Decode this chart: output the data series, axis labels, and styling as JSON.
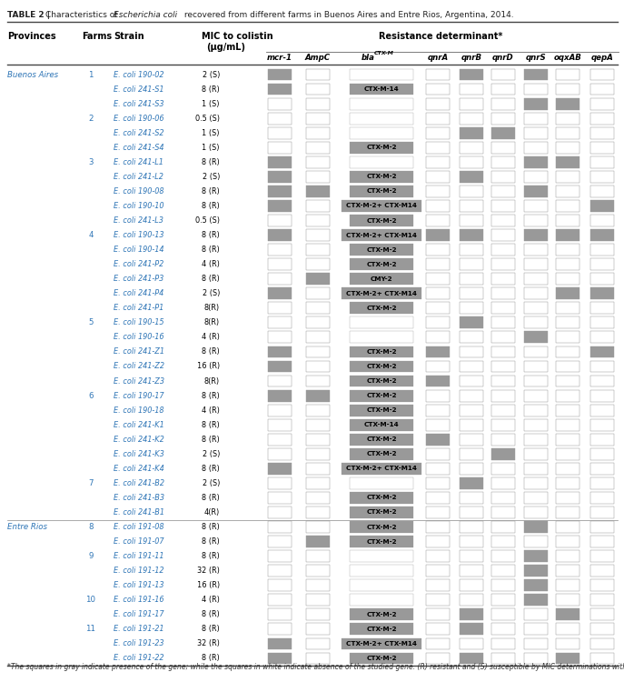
{
  "title_bold": "TABLE 2 | ",
  "title_rest": "Characteristics of ",
  "title_italic": "Escherichia coli",
  "title_end": " recovered from different farms in Buenos Aires and Entre Rios, Argentina, 2014.",
  "footnote": "*The squares in gray indicate presence of the gene; while the squares in white indicate absence of the studied gene. (R) resistant and (S) susceptible by MIC determinations with colistin.",
  "rows": [
    {
      "province": "Buenos Aires",
      "farm": "1",
      "strain": "E. coli 190-02",
      "mic": "2 (S)",
      "mcr1": 1,
      "ampc": 0,
      "ctxm": "",
      "qnra": 0,
      "qnrb": 1,
      "qnrd": 0,
      "qnrs": 1,
      "oqxab": 0,
      "qepa": 0
    },
    {
      "province": "",
      "farm": "",
      "strain": "E. coli 241-S1",
      "mic": "8 (R)",
      "mcr1": 1,
      "ampc": 0,
      "ctxm": "CTX-M-14",
      "qnra": 0,
      "qnrb": 0,
      "qnrd": 0,
      "qnrs": 0,
      "oqxab": 0,
      "qepa": 0
    },
    {
      "province": "",
      "farm": "",
      "strain": "E. coli 241-S3",
      "mic": "1 (S)",
      "mcr1": 0,
      "ampc": 0,
      "ctxm": "",
      "qnra": 0,
      "qnrb": 0,
      "qnrd": 0,
      "qnrs": 1,
      "oqxab": 1,
      "qepa": 0
    },
    {
      "province": "",
      "farm": "2",
      "strain": "E. coli 190-06",
      "mic": "0.5 (S)",
      "mcr1": 0,
      "ampc": 0,
      "ctxm": "",
      "qnra": 0,
      "qnrb": 0,
      "qnrd": 0,
      "qnrs": 0,
      "oqxab": 0,
      "qepa": 0
    },
    {
      "province": "",
      "farm": "",
      "strain": "E. coli 241-S2",
      "mic": "1 (S)",
      "mcr1": 0,
      "ampc": 0,
      "ctxm": "",
      "qnra": 0,
      "qnrb": 1,
      "qnrd": 1,
      "qnrs": 0,
      "oqxab": 0,
      "qepa": 0
    },
    {
      "province": "",
      "farm": "",
      "strain": "E. coli 241-S4",
      "mic": "1 (S)",
      "mcr1": 0,
      "ampc": 0,
      "ctxm": "CTX-M-2",
      "qnra": 0,
      "qnrb": 0,
      "qnrd": 0,
      "qnrs": 0,
      "oqxab": 0,
      "qepa": 0
    },
    {
      "province": "",
      "farm": "3",
      "strain": "E. coli 241-L1",
      "mic": "8 (R)",
      "mcr1": 1,
      "ampc": 0,
      "ctxm": "",
      "qnra": 0,
      "qnrb": 0,
      "qnrd": 0,
      "qnrs": 1,
      "oqxab": 1,
      "qepa": 0
    },
    {
      "province": "",
      "farm": "",
      "strain": "E. coli 241-L2",
      "mic": "2 (S)",
      "mcr1": 1,
      "ampc": 0,
      "ctxm": "CTX-M-2",
      "qnra": 0,
      "qnrb": 1,
      "qnrd": 0,
      "qnrs": 0,
      "oqxab": 0,
      "qepa": 0
    },
    {
      "province": "",
      "farm": "",
      "strain": "E. coli 190-08",
      "mic": "8 (R)",
      "mcr1": 1,
      "ampc": 1,
      "ctxm": "CTX-M-2",
      "qnra": 0,
      "qnrb": 0,
      "qnrd": 0,
      "qnrs": 1,
      "oqxab": 0,
      "qepa": 0
    },
    {
      "province": "",
      "farm": "",
      "strain": "E. coli 190-10",
      "mic": "8 (R)",
      "mcr1": 1,
      "ampc": 0,
      "ctxm": "CTX-M-2+ CTX-M14",
      "qnra": 0,
      "qnrb": 0,
      "qnrd": 0,
      "qnrs": 0,
      "oqxab": 0,
      "qepa": 1
    },
    {
      "province": "",
      "farm": "",
      "strain": "E. coli 241-L3",
      "mic": "0.5 (S)",
      "mcr1": 0,
      "ampc": 0,
      "ctxm": "CTX-M-2",
      "qnra": 0,
      "qnrb": 0,
      "qnrd": 0,
      "qnrs": 0,
      "oqxab": 0,
      "qepa": 0
    },
    {
      "province": "",
      "farm": "4",
      "strain": "E. coli 190-13",
      "mic": "8 (R)",
      "mcr1": 1,
      "ampc": 0,
      "ctxm": "CTX-M-2+ CTX-M14",
      "qnra": 1,
      "qnrb": 1,
      "qnrd": 0,
      "qnrs": 1,
      "oqxab": 1,
      "qepa": 1
    },
    {
      "province": "",
      "farm": "",
      "strain": "E. coli 190-14",
      "mic": "8 (R)",
      "mcr1": 0,
      "ampc": 0,
      "ctxm": "CTX-M-2",
      "qnra": 0,
      "qnrb": 0,
      "qnrd": 0,
      "qnrs": 0,
      "oqxab": 0,
      "qepa": 0
    },
    {
      "province": "",
      "farm": "",
      "strain": "E. coli 241-P2",
      "mic": "4 (R)",
      "mcr1": 0,
      "ampc": 0,
      "ctxm": "CTX-M-2",
      "qnra": 0,
      "qnrb": 0,
      "qnrd": 0,
      "qnrs": 0,
      "oqxab": 0,
      "qepa": 0
    },
    {
      "province": "",
      "farm": "",
      "strain": "E. coli 241-P3",
      "mic": "8 (R)",
      "mcr1": 0,
      "ampc": 1,
      "ctxm": "CMY-2",
      "qnra": 0,
      "qnrb": 0,
      "qnrd": 0,
      "qnrs": 0,
      "oqxab": 0,
      "qepa": 0
    },
    {
      "province": "",
      "farm": "",
      "strain": "E. coli 241-P4",
      "mic": "2 (S)",
      "mcr1": 1,
      "ampc": 0,
      "ctxm": "CTX-M-2+ CTX-M14",
      "qnra": 0,
      "qnrb": 0,
      "qnrd": 0,
      "qnrs": 0,
      "oqxab": 1,
      "qepa": 1
    },
    {
      "province": "",
      "farm": "",
      "strain": "E. coli 241-P1",
      "mic": "8(R)",
      "mcr1": 0,
      "ampc": 0,
      "ctxm": "CTX-M-2",
      "qnra": 0,
      "qnrb": 0,
      "qnrd": 0,
      "qnrs": 0,
      "oqxab": 0,
      "qepa": 0
    },
    {
      "province": "",
      "farm": "5",
      "strain": "E. coli 190-15",
      "mic": "8(R)",
      "mcr1": 0,
      "ampc": 0,
      "ctxm": "",
      "qnra": 0,
      "qnrb": 1,
      "qnrd": 0,
      "qnrs": 0,
      "oqxab": 0,
      "qepa": 0
    },
    {
      "province": "",
      "farm": "",
      "strain": "E. coli 190-16",
      "mic": "4 (R)",
      "mcr1": 0,
      "ampc": 0,
      "ctxm": "",
      "qnra": 0,
      "qnrb": 0,
      "qnrd": 0,
      "qnrs": 1,
      "oqxab": 0,
      "qepa": 0
    },
    {
      "province": "",
      "farm": "",
      "strain": "E. coli 241-Z1",
      "mic": "8 (R)",
      "mcr1": 1,
      "ampc": 0,
      "ctxm": "CTX-M-2",
      "qnra": 1,
      "qnrb": 0,
      "qnrd": 0,
      "qnrs": 0,
      "oqxab": 0,
      "qepa": 1
    },
    {
      "province": "",
      "farm": "",
      "strain": "E. coli 241-Z2",
      "mic": "16 (R)",
      "mcr1": 1,
      "ampc": 0,
      "ctxm": "CTX-M-2",
      "qnra": 0,
      "qnrb": 0,
      "qnrd": 0,
      "qnrs": 0,
      "oqxab": 0,
      "qepa": 0
    },
    {
      "province": "",
      "farm": "",
      "strain": "E. coli 241-Z3",
      "mic": "8(R)",
      "mcr1": 0,
      "ampc": 0,
      "ctxm": "CTX-M-2",
      "qnra": 1,
      "qnrb": 0,
      "qnrd": 0,
      "qnrs": 0,
      "oqxab": 0,
      "qepa": 0
    },
    {
      "province": "",
      "farm": "6",
      "strain": "E. coli 190-17",
      "mic": "8 (R)",
      "mcr1": 1,
      "ampc": 1,
      "ctxm": "CTX-M-2",
      "qnra": 0,
      "qnrb": 0,
      "qnrd": 0,
      "qnrs": 0,
      "oqxab": 0,
      "qepa": 0
    },
    {
      "province": "",
      "farm": "",
      "strain": "E. coli 190-18",
      "mic": "4 (R)",
      "mcr1": 0,
      "ampc": 0,
      "ctxm": "CTX-M-2",
      "qnra": 0,
      "qnrb": 0,
      "qnrd": 0,
      "qnrs": 0,
      "oqxab": 0,
      "qepa": 0
    },
    {
      "province": "",
      "farm": "",
      "strain": "E. coli 241-K1",
      "mic": "8 (R)",
      "mcr1": 0,
      "ampc": 0,
      "ctxm": "CTX-M-14",
      "qnra": 0,
      "qnrb": 0,
      "qnrd": 0,
      "qnrs": 0,
      "oqxab": 0,
      "qepa": 0
    },
    {
      "province": "",
      "farm": "",
      "strain": "E. coli 241-K2",
      "mic": "8 (R)",
      "mcr1": 0,
      "ampc": 0,
      "ctxm": "CTX-M-2",
      "qnra": 1,
      "qnrb": 0,
      "qnrd": 0,
      "qnrs": 0,
      "oqxab": 0,
      "qepa": 0
    },
    {
      "province": "",
      "farm": "",
      "strain": "E. coli 241-K3",
      "mic": "2 (S)",
      "mcr1": 0,
      "ampc": 0,
      "ctxm": "CTX-M-2",
      "qnra": 0,
      "qnrb": 0,
      "qnrd": 1,
      "qnrs": 0,
      "oqxab": 0,
      "qepa": 0
    },
    {
      "province": "",
      "farm": "",
      "strain": "E. coli 241-K4",
      "mic": "8 (R)",
      "mcr1": 1,
      "ampc": 0,
      "ctxm": "CTX-M-2+ CTX-M14",
      "qnra": 0,
      "qnrb": 0,
      "qnrd": 0,
      "qnrs": 0,
      "oqxab": 0,
      "qepa": 0
    },
    {
      "province": "",
      "farm": "7",
      "strain": "E. coli 241-B2",
      "mic": "2 (S)",
      "mcr1": 0,
      "ampc": 0,
      "ctxm": "",
      "qnra": 0,
      "qnrb": 1,
      "qnrd": 0,
      "qnrs": 0,
      "oqxab": 0,
      "qepa": 0
    },
    {
      "province": "",
      "farm": "",
      "strain": "E. coli 241-B3",
      "mic": "8 (R)",
      "mcr1": 0,
      "ampc": 0,
      "ctxm": "CTX-M-2",
      "qnra": 0,
      "qnrb": 0,
      "qnrd": 0,
      "qnrs": 0,
      "oqxab": 0,
      "qepa": 0
    },
    {
      "province": "",
      "farm": "",
      "strain": "E. coli 241-B1",
      "mic": "4(R)",
      "mcr1": 0,
      "ampc": 0,
      "ctxm": "CTX-M-2",
      "qnra": 0,
      "qnrb": 0,
      "qnrd": 0,
      "qnrs": 0,
      "oqxab": 0,
      "qepa": 0
    },
    {
      "province": "Entre Rios",
      "farm": "8",
      "strain": "E. coli 191-08",
      "mic": "8 (R)",
      "mcr1": 0,
      "ampc": 0,
      "ctxm": "CTX-M-2",
      "qnra": 0,
      "qnrb": 0,
      "qnrd": 0,
      "qnrs": 1,
      "oqxab": 0,
      "qepa": 0
    },
    {
      "province": "",
      "farm": "",
      "strain": "E. coli 191-07",
      "mic": "8 (R)",
      "mcr1": 0,
      "ampc": 1,
      "ctxm": "CTX-M-2",
      "qnra": 0,
      "qnrb": 0,
      "qnrd": 0,
      "qnrs": 0,
      "oqxab": 0,
      "qepa": 0
    },
    {
      "province": "",
      "farm": "9",
      "strain": "E. coli 191-11",
      "mic": "8 (R)",
      "mcr1": 0,
      "ampc": 0,
      "ctxm": "",
      "qnra": 0,
      "qnrb": 0,
      "qnrd": 0,
      "qnrs": 1,
      "oqxab": 0,
      "qepa": 0
    },
    {
      "province": "",
      "farm": "",
      "strain": "E. coli 191-12",
      "mic": "32 (R)",
      "mcr1": 0,
      "ampc": 0,
      "ctxm": "",
      "qnra": 0,
      "qnrb": 0,
      "qnrd": 0,
      "qnrs": 1,
      "oqxab": 0,
      "qepa": 0
    },
    {
      "province": "",
      "farm": "",
      "strain": "E. coli 191-13",
      "mic": "16 (R)",
      "mcr1": 0,
      "ampc": 0,
      "ctxm": "",
      "qnra": 0,
      "qnrb": 0,
      "qnrd": 0,
      "qnrs": 1,
      "oqxab": 0,
      "qepa": 0
    },
    {
      "province": "",
      "farm": "10",
      "strain": "E. coli 191-16",
      "mic": "4 (R)",
      "mcr1": 0,
      "ampc": 0,
      "ctxm": "",
      "qnra": 0,
      "qnrb": 0,
      "qnrd": 0,
      "qnrs": 1,
      "oqxab": 0,
      "qepa": 0
    },
    {
      "province": "",
      "farm": "",
      "strain": "E. coli 191-17",
      "mic": "8 (R)",
      "mcr1": 0,
      "ampc": 0,
      "ctxm": "CTX-M-2",
      "qnra": 0,
      "qnrb": 1,
      "qnrd": 0,
      "qnrs": 0,
      "oqxab": 1,
      "qepa": 0
    },
    {
      "province": "",
      "farm": "11",
      "strain": "E. coli 191-21",
      "mic": "8 (R)",
      "mcr1": 0,
      "ampc": 0,
      "ctxm": "CTX-M-2",
      "qnra": 0,
      "qnrb": 1,
      "qnrd": 0,
      "qnrs": 0,
      "oqxab": 0,
      "qepa": 0
    },
    {
      "province": "",
      "farm": "",
      "strain": "E. coli 191-23",
      "mic": "32 (R)",
      "mcr1": 1,
      "ampc": 0,
      "ctxm": "CTX-M-2+ CTX-M14",
      "qnra": 0,
      "qnrb": 0,
      "qnrd": 0,
      "qnrs": 0,
      "oqxab": 0,
      "qepa": 0
    },
    {
      "province": "",
      "farm": "",
      "strain": "E. coli 191-22",
      "mic": "8 (R)",
      "mcr1": 1,
      "ampc": 0,
      "ctxm": "CTX-M-2",
      "qnra": 0,
      "qnrb": 1,
      "qnrd": 0,
      "qnrs": 0,
      "oqxab": 1,
      "qepa": 0
    }
  ],
  "gray_color": "#999999",
  "province_color": "#2e75b6",
  "farm_color": "#2e75b6",
  "strain_color": "#2e75b6",
  "bg_color": "#ffffff",
  "header_bold_color": "#000000",
  "title_color": "#555555"
}
